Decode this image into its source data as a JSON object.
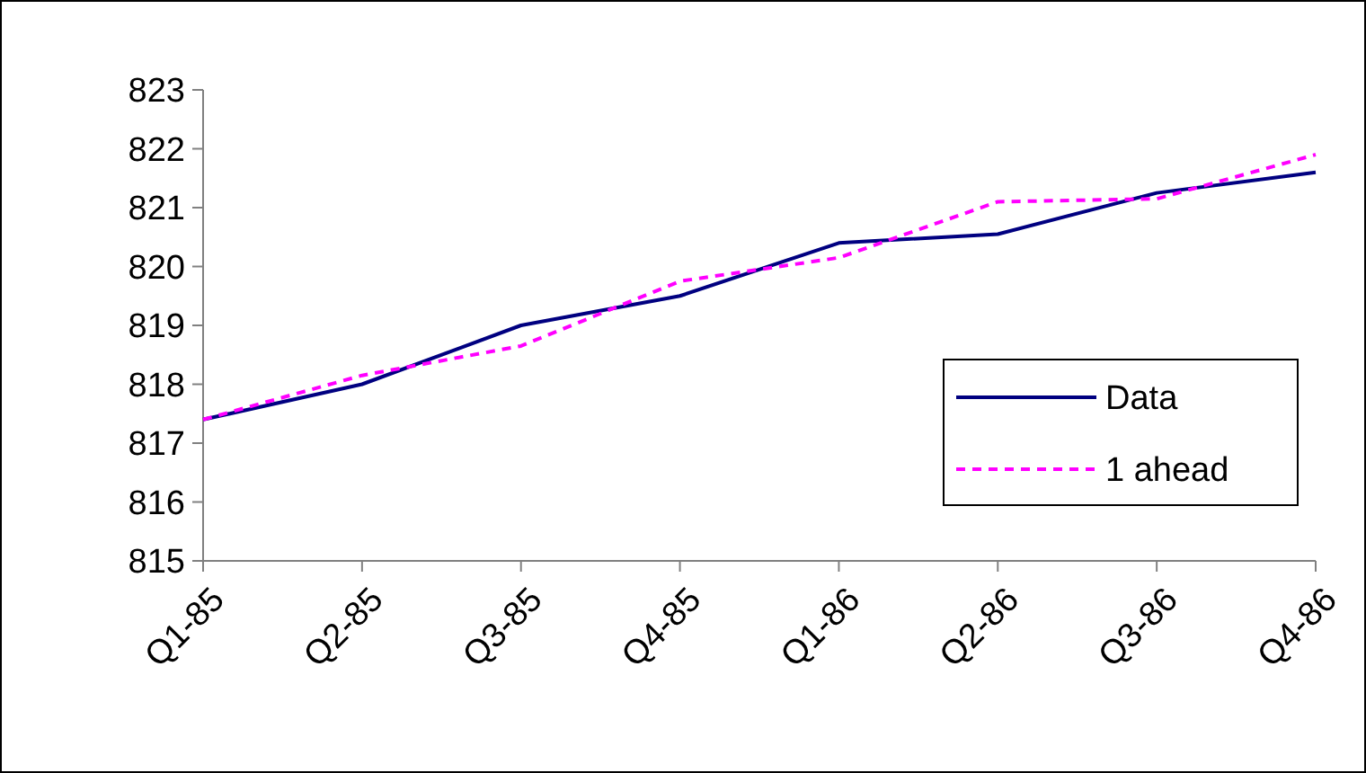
{
  "chart_data": {
    "type": "line",
    "categories": [
      "Q1-85",
      "Q2-85",
      "Q3-85",
      "Q4-85",
      "Q1-86",
      "Q2-86",
      "Q3-86",
      "Q4-86"
    ],
    "series": [
      {
        "name": "Data",
        "color": "#000080",
        "line_style": "solid",
        "values": [
          817.4,
          818.0,
          819.0,
          819.5,
          820.4,
          820.55,
          821.25,
          821.6
        ]
      },
      {
        "name": "1 ahead",
        "color": "#ff00ff",
        "line_style": "dashed",
        "values": [
          817.4,
          818.15,
          818.65,
          819.75,
          820.15,
          821.1,
          821.15,
          821.9
        ]
      }
    ],
    "ylim": [
      815,
      823
    ],
    "yticks": [
      815,
      816,
      817,
      818,
      819,
      820,
      821,
      822,
      823
    ],
    "grid": false,
    "legend": "right"
  }
}
